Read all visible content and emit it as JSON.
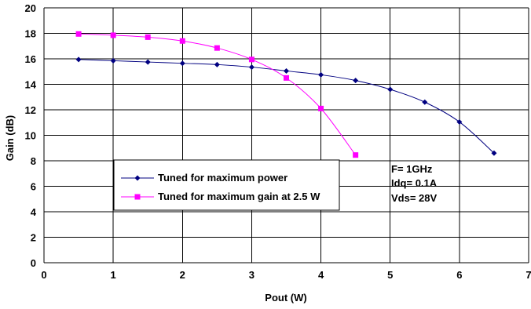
{
  "chart_data": {
    "type": "line",
    "xlabel": "Pout (W)",
    "ylabel": "Gain (dB)",
    "xlim": [
      0,
      7
    ],
    "ylim": [
      0,
      20
    ],
    "x_ticks": [
      0,
      1,
      2,
      3,
      4,
      5,
      6,
      7
    ],
    "y_ticks": [
      0,
      2,
      4,
      6,
      8,
      10,
      12,
      14,
      16,
      18,
      20
    ],
    "grid": true,
    "legend_position": "bottom-left-inside",
    "series": [
      {
        "name": "Tuned for maximum power",
        "color": "#000080",
        "marker": "diamond",
        "x": [
          0.5,
          1.0,
          1.5,
          2.0,
          2.5,
          3.0,
          3.5,
          4.0,
          4.5,
          5.0,
          5.5,
          6.0,
          6.5
        ],
        "y": [
          15.95,
          15.85,
          15.75,
          15.65,
          15.55,
          15.35,
          15.05,
          14.75,
          14.3,
          13.6,
          12.6,
          11.05,
          8.6
        ]
      },
      {
        "name": "Tuned for maximum gain at 2.5 W",
        "color": "#FF00FF",
        "marker": "square",
        "x": [
          0.5,
          1.0,
          1.5,
          2.0,
          2.5,
          3.0,
          3.5,
          4.0,
          4.5
        ],
        "y": [
          17.95,
          17.85,
          17.7,
          17.4,
          16.85,
          15.95,
          14.5,
          12.1,
          8.45
        ]
      }
    ],
    "annotations": [
      "F= 1GHz",
      "Idq= 0.1A",
      "Vds= 28V"
    ]
  }
}
